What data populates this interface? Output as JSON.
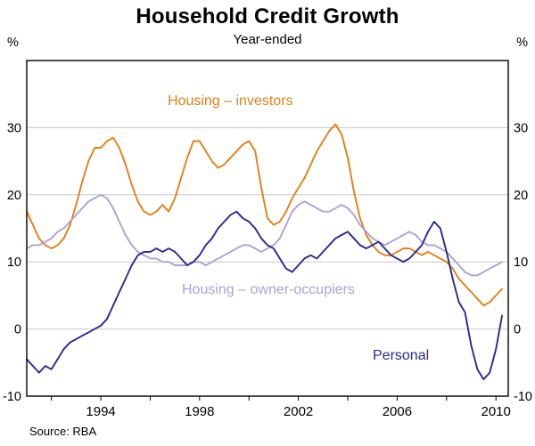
{
  "page": {
    "title": "Household Credit Growth",
    "subtitle": "Year-ended",
    "source": "Source: RBA"
  },
  "chart_data": {
    "type": "line",
    "title": "Household Credit Growth",
    "subtitle": "Year-ended",
    "source": "Source: RBA",
    "unit": "%",
    "xlim": [
      1991,
      2010.5
    ],
    "ylim": [
      -10,
      40
    ],
    "y_ticks": [
      -10,
      0,
      10,
      20,
      30
    ],
    "y_gridlines": [
      0,
      10,
      20,
      30
    ],
    "x_ticks": [
      1994,
      1998,
      2002,
      2006,
      2010
    ],
    "x_minor_ticks": [
      1992,
      1996,
      2000,
      2004,
      2008
    ],
    "grid": "horizontal",
    "legend_position": "inline-annotations",
    "x_start": 1991.0,
    "x_step": 0.25,
    "series": [
      {
        "name": "Housing – investors",
        "slug": "housing-investors",
        "color": "#E08119",
        "values": [
          17.5,
          15.5,
          13.5,
          12.5,
          12.0,
          12.5,
          13.5,
          15.5,
          18.5,
          22.0,
          25.0,
          27.0,
          27.0,
          28.0,
          28.5,
          27.0,
          24.5,
          21.5,
          19.0,
          17.5,
          17.0,
          17.5,
          18.5,
          17.5,
          19.5,
          22.5,
          25.5,
          28.0,
          28.0,
          26.5,
          25.0,
          24.0,
          24.5,
          25.5,
          26.5,
          27.5,
          28.0,
          26.5,
          21.0,
          16.5,
          15.5,
          16.0,
          17.5,
          19.5,
          21.0,
          22.5,
          24.5,
          26.5,
          28.0,
          29.5,
          30.5,
          29.0,
          25.5,
          20.5,
          16.5,
          14.0,
          12.5,
          11.5,
          11.0,
          11.0,
          11.5,
          12.0,
          12.0,
          11.5,
          11.0,
          11.5,
          11.0,
          10.5,
          10.0,
          9.0,
          7.5,
          6.5,
          5.5,
          4.5,
          3.5,
          4.0,
          5.0,
          6.0
        ]
      },
      {
        "name": "Housing – owner-occupiers",
        "slug": "housing-owner-occupiers",
        "color": "#ACA3D2",
        "values": [
          12.0,
          12.5,
          12.5,
          13.0,
          13.5,
          14.5,
          15.0,
          16.0,
          17.0,
          18.0,
          19.0,
          19.5,
          20.0,
          19.5,
          18.0,
          16.0,
          14.0,
          12.5,
          11.5,
          11.0,
          10.5,
          10.5,
          10.0,
          10.0,
          9.5,
          9.5,
          9.5,
          10.0,
          10.0,
          9.5,
          10.0,
          10.5,
          11.0,
          11.5,
          12.0,
          12.5,
          12.5,
          12.0,
          11.5,
          12.0,
          12.5,
          13.5,
          15.5,
          17.5,
          18.5,
          19.0,
          18.5,
          18.0,
          17.5,
          17.5,
          18.0,
          18.5,
          18.0,
          17.0,
          15.5,
          14.5,
          13.5,
          13.0,
          12.5,
          13.0,
          13.5,
          14.0,
          14.5,
          14.0,
          13.0,
          12.5,
          12.5,
          12.0,
          11.5,
          10.5,
          9.5,
          8.5,
          8.0,
          8.0,
          8.5,
          9.0,
          9.5,
          10.0
        ]
      },
      {
        "name": "Personal",
        "slug": "personal",
        "color": "#2A2A8F",
        "values": [
          -4.5,
          -5.5,
          -6.5,
          -5.5,
          -6.0,
          -4.5,
          -3.0,
          -2.0,
          -1.5,
          -1.0,
          -0.5,
          0.0,
          0.5,
          1.5,
          3.5,
          5.5,
          7.5,
          9.5,
          11.0,
          11.5,
          11.5,
          12.0,
          11.5,
          12.0,
          11.5,
          10.5,
          9.5,
          10.0,
          11.0,
          12.5,
          13.5,
          15.0,
          16.0,
          17.0,
          17.5,
          16.5,
          16.0,
          15.0,
          13.5,
          12.5,
          12.0,
          10.5,
          9.0,
          8.5,
          9.5,
          10.5,
          11.0,
          10.5,
          11.5,
          12.5,
          13.5,
          14.0,
          14.5,
          13.5,
          12.5,
          12.0,
          12.5,
          13.0,
          12.0,
          11.0,
          10.5,
          10.0,
          10.5,
          11.5,
          12.5,
          14.5,
          16.0,
          15.0,
          11.5,
          7.5,
          4.0,
          2.5,
          -2.5,
          -6.0,
          -7.5,
          -6.5,
          -3.0,
          2.0
        ]
      }
    ],
    "annotations": [
      {
        "text": "Housing – investors",
        "color": "#E08119"
      },
      {
        "text": "Housing – owner-occupiers",
        "color": "#ACA3D2"
      },
      {
        "text": "Personal",
        "color": "#2A2A8F"
      }
    ],
    "colors": {
      "gridline": "#C9C9C9",
      "axis_frame": "#000000"
    }
  }
}
